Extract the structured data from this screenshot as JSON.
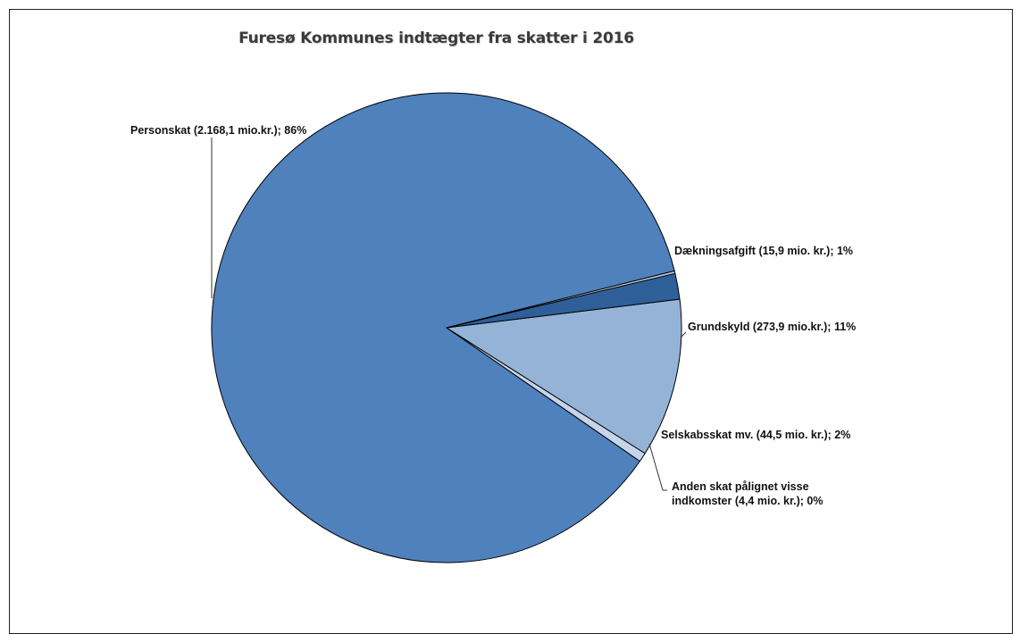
{
  "chart_data": {
    "type": "pie",
    "title": "Furesø Kommunes indtægter fra skatter i 2016",
    "unit": "mio.kr.",
    "slices": [
      {
        "name": "Personskat",
        "value": 2168.1,
        "percent": 86,
        "label": "Personskat (2.168,1 mio.kr.); 86%",
        "label_lines": [
          "Personskat (2.168,1 mio.kr.); 86%"
        ],
        "color": "#4F81BD"
      },
      {
        "name": "Dækningsafgift",
        "value": 15.9,
        "percent": 1,
        "label": "Dækningsafgift (15,9 mio. kr.); 1%",
        "label_lines": [
          "Dækningsafgift (15,9 mio. kr.); 1%"
        ],
        "color": "#C6D5EC"
      },
      {
        "name": "Grundskyld",
        "value": 273.9,
        "percent": 11,
        "label": "Grundskyld (273,9 mio.kr.); 11%",
        "label_lines": [
          "Grundskyld (273,9 mio.kr.); 11%"
        ],
        "color": "#95B3D7"
      },
      {
        "name": "Selskabsskat mv.",
        "value": 44.5,
        "percent": 2,
        "label": "Selskabsskat mv. (44,5 mio. kr.); 2%",
        "label_lines": [
          "Selskabsskat mv. (44,5 mio. kr.); 2%"
        ],
        "color": "#2F5F98"
      },
      {
        "name": "Anden skat pålignet visse indkomster",
        "value": 4.4,
        "percent": 0,
        "label": "Anden skat pålignet visse indkomster (4,4 mio. kr.); 0%",
        "label_lines": [
          "Anden skat pålignet visse",
          "indkomster (4,4 mio. kr.); 0%"
        ],
        "color": "#B9CDE5"
      }
    ],
    "legend": "none",
    "labels": "outside with leader lines"
  }
}
